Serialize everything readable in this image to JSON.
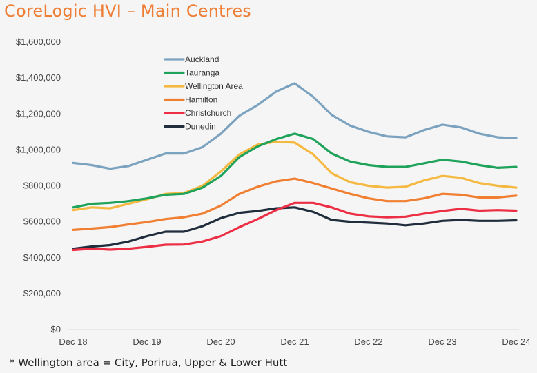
{
  "chart_data": {
    "type": "line",
    "title": "CoreLogic HVI – Main Centres",
    "xlabel": "",
    "ylabel": "",
    "ylim": [
      0,
      1600000
    ],
    "yticks": [
      0,
      200000,
      400000,
      600000,
      800000,
      1000000,
      1200000,
      1400000,
      1600000
    ],
    "ytick_labels": [
      "$0",
      "$200,000",
      "$400,000",
      "$600,000",
      "$800,000",
      "$1,000,000",
      "$1,200,000",
      "$1,400,000",
      "$1,600,000"
    ],
    "x_tick_labels": [
      "Dec 18",
      "Dec 19",
      "Dec 20",
      "Dec 21",
      "Dec 22",
      "Dec 23",
      "Dec 24"
    ],
    "x_frequency": "quarterly",
    "x": [
      "Dec 18",
      "Mar 19",
      "Jun 19",
      "Sep 19",
      "Dec 19",
      "Mar 20",
      "Jun 20",
      "Sep 20",
      "Dec 20",
      "Mar 21",
      "Jun 21",
      "Sep 21",
      "Dec 21",
      "Mar 22",
      "Jun 22",
      "Sep 22",
      "Dec 22",
      "Mar 23",
      "Jun 23",
      "Sep 23",
      "Dec 23",
      "Mar 24",
      "Jun 24",
      "Sep 24",
      "Dec 24"
    ],
    "legend_position": "top-left",
    "grid": false,
    "series": [
      {
        "name": "Auckland",
        "color": "#7ba3c0",
        "values": [
          927000,
          915000,
          895000,
          910000,
          945000,
          980000,
          980000,
          1015000,
          1090000,
          1190000,
          1250000,
          1325000,
          1370000,
          1295000,
          1195000,
          1135000,
          1100000,
          1075000,
          1070000,
          1110000,
          1140000,
          1125000,
          1090000,
          1070000,
          1065000
        ]
      },
      {
        "name": "Tauranga",
        "color": "#1fa25a",
        "values": [
          680000,
          700000,
          705000,
          715000,
          730000,
          750000,
          755000,
          790000,
          855000,
          960000,
          1020000,
          1060000,
          1090000,
          1060000,
          980000,
          935000,
          915000,
          905000,
          905000,
          925000,
          945000,
          935000,
          915000,
          900000,
          905000
        ]
      },
      {
        "name": "Wellington Area",
        "color": "#f5b942",
        "values": [
          665000,
          680000,
          675000,
          700000,
          725000,
          755000,
          760000,
          800000,
          880000,
          975000,
          1030000,
          1045000,
          1040000,
          975000,
          870000,
          820000,
          800000,
          790000,
          795000,
          830000,
          855000,
          845000,
          815000,
          800000,
          790000
        ]
      },
      {
        "name": "Hamilton",
        "color": "#f07f32",
        "values": [
          555000,
          562000,
          570000,
          585000,
          598000,
          615000,
          625000,
          645000,
          690000,
          755000,
          795000,
          825000,
          840000,
          815000,
          785000,
          755000,
          730000,
          715000,
          715000,
          730000,
          755000,
          750000,
          735000,
          735000,
          745000
        ]
      },
      {
        "name": "Christchurch",
        "color": "#ec2f44",
        "values": [
          443000,
          450000,
          445000,
          450000,
          460000,
          472000,
          473000,
          490000,
          520000,
          570000,
          615000,
          665000,
          705000,
          705000,
          680000,
          645000,
          630000,
          625000,
          628000,
          645000,
          660000,
          672000,
          662000,
          665000,
          662000
        ]
      },
      {
        "name": "Dunedin",
        "color": "#1f2d3d",
        "values": [
          450000,
          462000,
          470000,
          490000,
          520000,
          545000,
          545000,
          575000,
          620000,
          650000,
          660000,
          675000,
          680000,
          655000,
          610000,
          600000,
          595000,
          590000,
          580000,
          590000,
          605000,
          610000,
          605000,
          605000,
          608000
        ]
      }
    ]
  },
  "footnote": "* Wellington area = City, Porirua, Upper & Lower Hutt"
}
